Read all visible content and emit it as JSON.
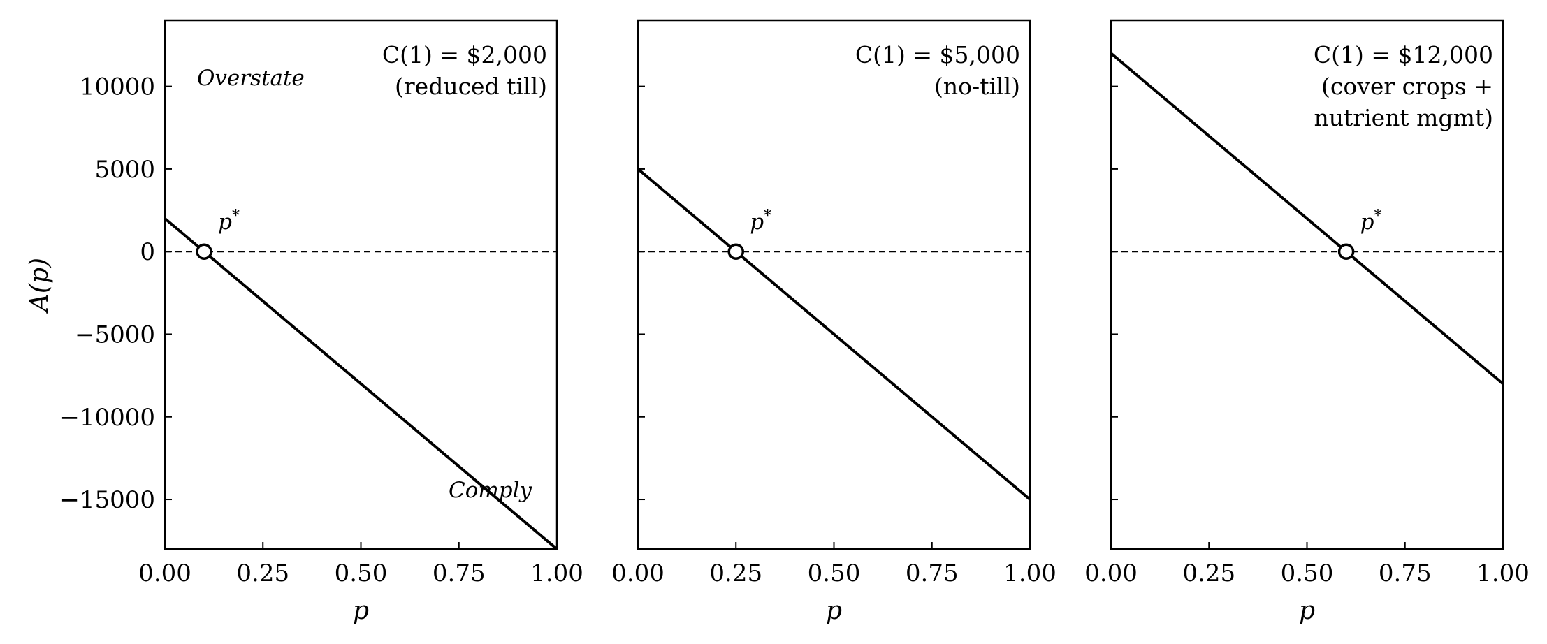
{
  "chart_data": [
    {
      "type": "line",
      "title": "",
      "xlabel": "p",
      "ylabel": "A(p)",
      "xlim": [
        0,
        1
      ],
      "ylim": [
        -18000,
        14000
      ],
      "xticks": [
        0,
        0.25,
        0.5,
        0.75,
        1
      ],
      "xtick_labels": [
        "0.00",
        "0.25",
        "0.50",
        "0.75",
        "1.00"
      ],
      "yticks": [
        10000,
        5000,
        0,
        -5000,
        -10000,
        -15000
      ],
      "ytick_labels": [
        "10000",
        "5000",
        "0",
        "−5000",
        "−10000",
        "−15000"
      ],
      "series": [
        {
          "x": [
            0,
            1
          ],
          "y": [
            2000,
            -18000
          ]
        }
      ],
      "reference_line": {
        "y": 0,
        "style": "dashed"
      },
      "threshold_point": {
        "x": 0.1,
        "y": 0,
        "label": "p*"
      },
      "annotation_lines": [
        "C(1) = $2,000",
        "(reduced till)"
      ],
      "region_labels": [
        "Overstate",
        "Comply"
      ],
      "grid": false
    },
    {
      "type": "line",
      "title": "",
      "xlabel": "p",
      "ylabel": "",
      "xlim": [
        0,
        1
      ],
      "ylim": [
        -18000,
        14000
      ],
      "xticks": [
        0,
        0.25,
        0.5,
        0.75,
        1
      ],
      "xtick_labels": [
        "0.00",
        "0.25",
        "0.50",
        "0.75",
        "1.00"
      ],
      "yticks": [
        10000,
        5000,
        0,
        -5000,
        -10000,
        -15000
      ],
      "ytick_labels": [],
      "series": [
        {
          "x": [
            0,
            1
          ],
          "y": [
            5000,
            -15000
          ]
        }
      ],
      "reference_line": {
        "y": 0,
        "style": "dashed"
      },
      "threshold_point": {
        "x": 0.25,
        "y": 0,
        "label": "p*"
      },
      "annotation_lines": [
        "C(1) = $5,000",
        "(no-till)"
      ],
      "region_labels": [],
      "grid": false
    },
    {
      "type": "line",
      "title": "",
      "xlabel": "p",
      "ylabel": "",
      "xlim": [
        0,
        1
      ],
      "ylim": [
        -18000,
        14000
      ],
      "xticks": [
        0,
        0.25,
        0.5,
        0.75,
        1
      ],
      "xtick_labels": [
        "0.00",
        "0.25",
        "0.50",
        "0.75",
        "1.00"
      ],
      "yticks": [
        10000,
        5000,
        0,
        -5000,
        -10000,
        -15000
      ],
      "ytick_labels": [],
      "series": [
        {
          "x": [
            0,
            1
          ],
          "y": [
            12000,
            -8000
          ]
        }
      ],
      "reference_line": {
        "y": 0,
        "style": "dashed"
      },
      "threshold_point": {
        "x": 0.6,
        "y": 0,
        "label": "p*"
      },
      "annotation_lines": [
        "C(1) = $12,000",
        "(cover crops +",
        "nutrient mgmt)"
      ],
      "region_labels": [],
      "grid": false
    }
  ]
}
